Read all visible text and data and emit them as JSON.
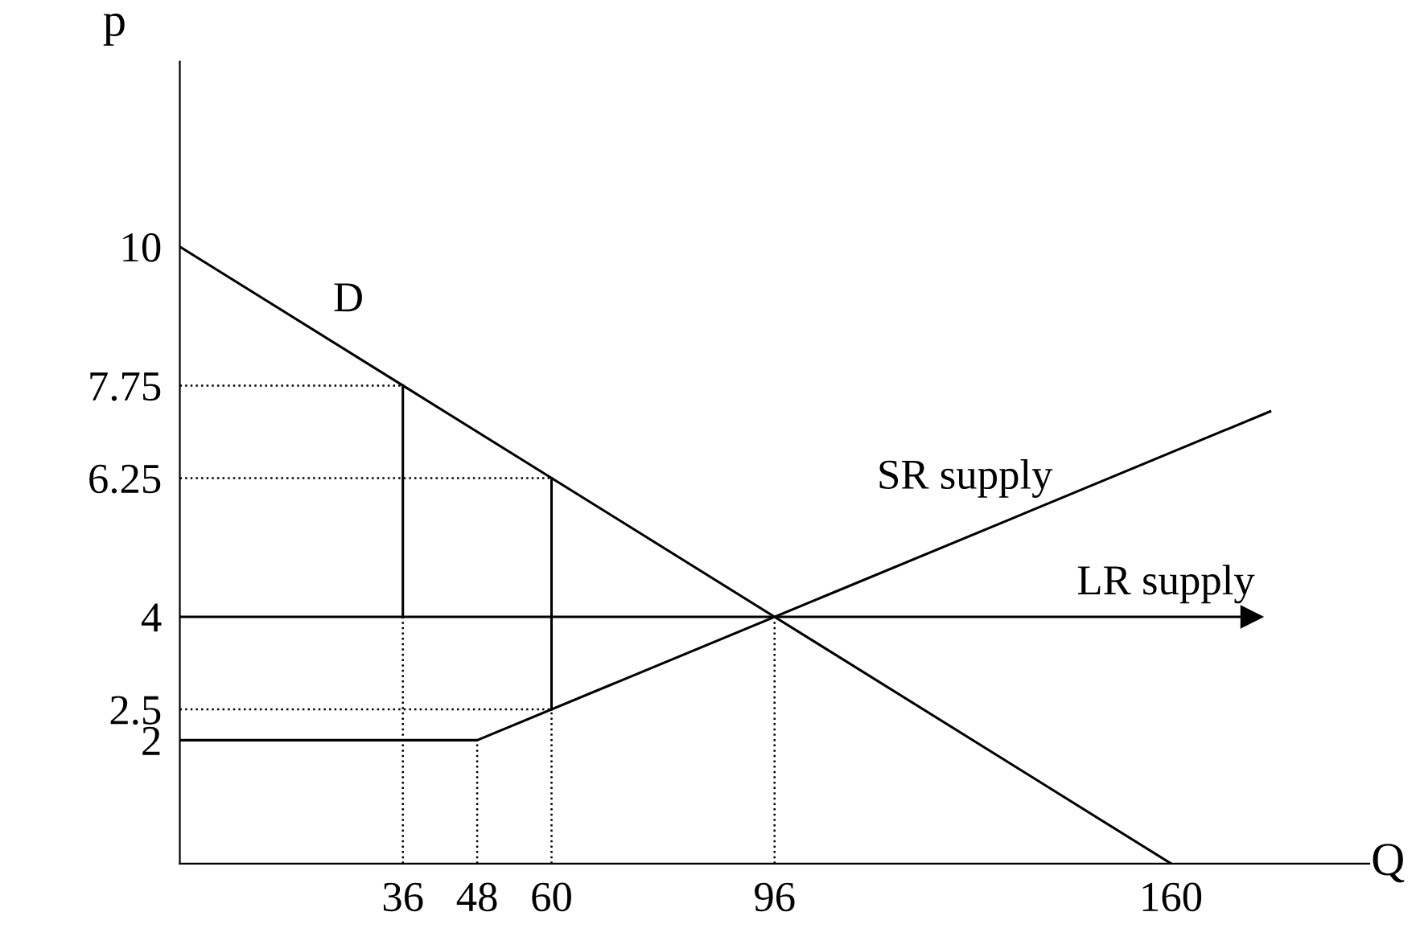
{
  "chart_data": {
    "type": "line",
    "xlabel": "Q",
    "ylabel": "p",
    "xlim": [
      0,
      192
    ],
    "ylim": [
      0,
      13
    ],
    "xticks": [
      36,
      48,
      60,
      96,
      160
    ],
    "yticks": [
      2,
      2.5,
      4,
      6.25,
      7.75,
      10
    ],
    "grid": false,
    "legend": false,
    "marker": "none",
    "series": [
      {
        "name": "D",
        "color": "#000000",
        "x": [
          0,
          160
        ],
        "values": [
          10,
          0
        ],
        "line_style": "solid"
      },
      {
        "name": "SR supply",
        "color": "#000000",
        "x": [
          0,
          48,
          176
        ],
        "values": [
          2,
          2,
          7.33
        ],
        "line_style": "solid"
      },
      {
        "name": "LR supply",
        "color": "#000000",
        "x": [
          0,
          173
        ],
        "values": [
          4,
          4
        ],
        "line_style": "solid",
        "marker": "triangle"
      },
      {
        "color": "#000000",
        "x": [
          36,
          36
        ],
        "values": [
          4,
          7.75
        ],
        "line_style": "solid"
      },
      {
        "color": "#000000",
        "x": [
          60,
          60
        ],
        "values": [
          2.5,
          6.25
        ],
        "line_style": "solid"
      },
      {
        "color": "#000000",
        "x": [
          0,
          36
        ],
        "values": [
          7.75,
          7.75
        ],
        "line_style": "dotted"
      },
      {
        "color": "#000000",
        "x": [
          0,
          60
        ],
        "values": [
          6.25,
          6.25
        ],
        "line_style": "dotted"
      },
      {
        "color": "#000000",
        "x": [
          0,
          60
        ],
        "values": [
          2.5,
          2.5
        ],
        "line_style": "dotted"
      },
      {
        "color": "#000000",
        "x": [
          36,
          36
        ],
        "values": [
          0,
          4
        ],
        "line_style": "dotted"
      },
      {
        "color": "#000000",
        "x": [
          48,
          48
        ],
        "values": [
          0,
          2
        ],
        "line_style": "dotted"
      },
      {
        "color": "#000000",
        "x": [
          60,
          60
        ],
        "values": [
          0,
          2.5
        ],
        "line_style": "dotted"
      },
      {
        "color": "#000000",
        "x": [
          96,
          96
        ],
        "values": [
          0,
          4
        ],
        "line_style": "dotted"
      }
    ]
  }
}
